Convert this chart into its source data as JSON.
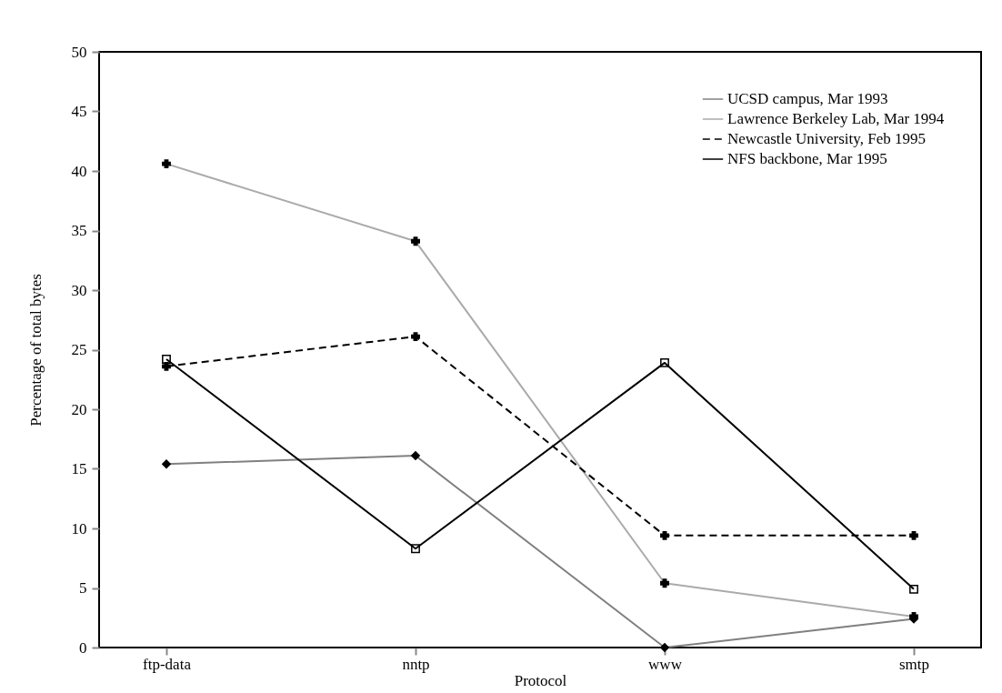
{
  "chart_data": {
    "type": "line",
    "xlabel": "Protocol",
    "ylabel": "Percentage of total bytes",
    "categories": [
      "ftp-data",
      "nntp",
      "www",
      "smtp"
    ],
    "series": [
      {
        "name": "UCSD campus, Mar 1993",
        "color": "#808080",
        "marker": "diamond",
        "line_style": "solid",
        "values": [
          15.4,
          16.1,
          0,
          2.4
        ]
      },
      {
        "name": "Lawrence Berkeley Lab, Mar 1994",
        "color": "#aaaaaa",
        "marker": "cross",
        "line_style": "solid",
        "values": [
          40.6,
          34.1,
          5.4,
          2.6
        ]
      },
      {
        "name": "Newcastle University, Feb 1995",
        "color": "#000000",
        "marker": "cross",
        "line_style": "dashed",
        "values": [
          23.6,
          26.1,
          9.4,
          9.4
        ]
      },
      {
        "name": "NFS backbone, Mar 1995",
        "color": "#000000",
        "marker": "square",
        "line_style": "solid",
        "values": [
          24.2,
          8.3,
          23.9,
          4.9
        ]
      }
    ],
    "ylim": [
      0,
      50
    ],
    "yticks": [
      0,
      5,
      10,
      15,
      20,
      25,
      30,
      35,
      40,
      45,
      50
    ],
    "grid": false,
    "legend": "top right"
  }
}
